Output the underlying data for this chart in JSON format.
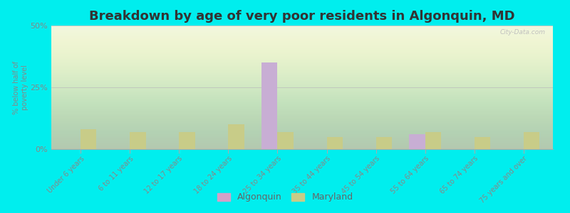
{
  "title": "Breakdown by age of very poor residents in Algonquin, MD",
  "ylabel": "% below half of\npoverty level",
  "categories": [
    "Under 6 years",
    "6 to 11 years",
    "12 to 17 years",
    "18 to 24 years",
    "25 to 34 years",
    "35 to 44 years",
    "45 to 54 years",
    "55 to 64 years",
    "65 to 74 years",
    "75 years and over"
  ],
  "algonquin_values": [
    0,
    0,
    0,
    0,
    35,
    0,
    0,
    6,
    0,
    0
  ],
  "maryland_values": [
    8,
    7,
    7,
    10,
    7,
    5,
    5,
    7,
    5,
    7
  ],
  "algonquin_color": "#c8aed4",
  "maryland_color": "#c8cc88",
  "background_color": "#00eeee",
  "plot_bg_top": "#dce8c0",
  "plot_bg_bottom": "#eef4dc",
  "ylim": [
    0,
    50
  ],
  "yticks": [
    0,
    25,
    50
  ],
  "ytick_labels": [
    "0%",
    "25%",
    "50%"
  ],
  "bar_width": 0.32,
  "title_fontsize": 13,
  "legend_labels": [
    "Algonquin",
    "Maryland"
  ],
  "legend_marker_algonquin": "#d4a0c8",
  "legend_marker_maryland": "#c8cc88",
  "watermark": "City-Data.com"
}
